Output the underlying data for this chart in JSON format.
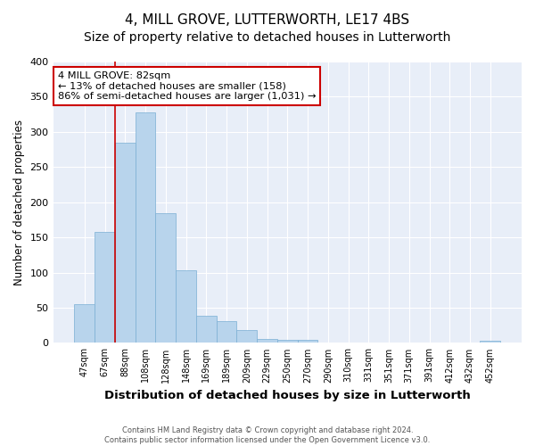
{
  "title": "4, MILL GROVE, LUTTERWORTH, LE17 4BS",
  "subtitle": "Size of property relative to detached houses in Lutterworth",
  "xlabel": "Distribution of detached houses by size in Lutterworth",
  "ylabel": "Number of detached properties",
  "bar_labels": [
    "47sqm",
    "67sqm",
    "88sqm",
    "108sqm",
    "128sqm",
    "148sqm",
    "169sqm",
    "189sqm",
    "209sqm",
    "229sqm",
    "250sqm",
    "270sqm",
    "290sqm",
    "310sqm",
    "331sqm",
    "351sqm",
    "371sqm",
    "391sqm",
    "412sqm",
    "432sqm",
    "452sqm"
  ],
  "bar_values": [
    55,
    158,
    285,
    328,
    185,
    103,
    38,
    31,
    18,
    6,
    4,
    4,
    0,
    0,
    0,
    0,
    0,
    0,
    0,
    0,
    3
  ],
  "bar_color": "#b8d4ec",
  "bar_edge_color": "#7aafd4",
  "highlight_line_color": "#cc0000",
  "annotation_title": "4 MILL GROVE: 82sqm",
  "annotation_line1": "← 13% of detached houses are smaller (158)",
  "annotation_line2": "86% of semi-detached houses are larger (1,031) →",
  "annotation_box_facecolor": "#ffffff",
  "annotation_box_edgecolor": "#cc0000",
  "ylim": [
    0,
    400
  ],
  "yticks": [
    0,
    50,
    100,
    150,
    200,
    250,
    300,
    350,
    400
  ],
  "footer_line1": "Contains HM Land Registry data © Crown copyright and database right 2024.",
  "footer_line2": "Contains public sector information licensed under the Open Government Licence v3.0.",
  "bg_color": "#ffffff",
  "plot_bg_color": "#e8eef8",
  "grid_color": "#ffffff",
  "title_fontsize": 11,
  "subtitle_fontsize": 10
}
